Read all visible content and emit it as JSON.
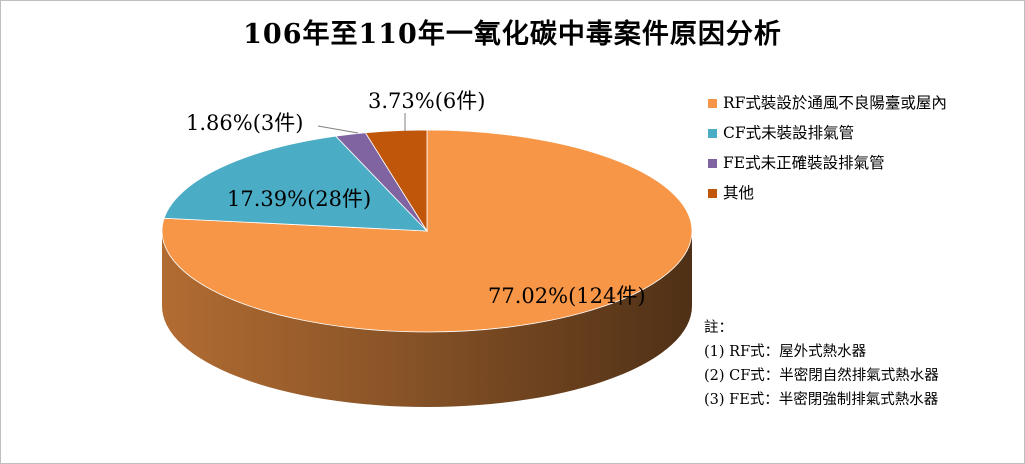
{
  "chart_data": {
    "type": "pie",
    "title": "106年至110年一氧化碳中毒案件原因分析",
    "slices": [
      {
        "name": "RF式裝設於通風不良陽臺或屋內",
        "percent": 77.02,
        "count": 124,
        "label": "77.02%(124件)",
        "color": "#F79646"
      },
      {
        "name": "CF式未裝設排氣管",
        "percent": 17.39,
        "count": 28,
        "label": "17.39%(28件)",
        "color": "#4BACC6"
      },
      {
        "name": "FE式未正確裝設排氣管",
        "percent": 1.86,
        "count": 3,
        "label": "1.86%(3件)",
        "color": "#8064A2"
      },
      {
        "name": "其他",
        "percent": 3.73,
        "count": 6,
        "label": "3.73%(6件)",
        "color": "#C0560A"
      }
    ],
    "legend_position": "right",
    "style": "3d-pie"
  },
  "notes": {
    "heading": "註：",
    "lines": [
      "(1) RF式：屋外式熱水器",
      "(2) CF式：半密閉自然排氣式熱水器",
      "(3) FE式：半密閉強制排氣式熱水器"
    ]
  }
}
